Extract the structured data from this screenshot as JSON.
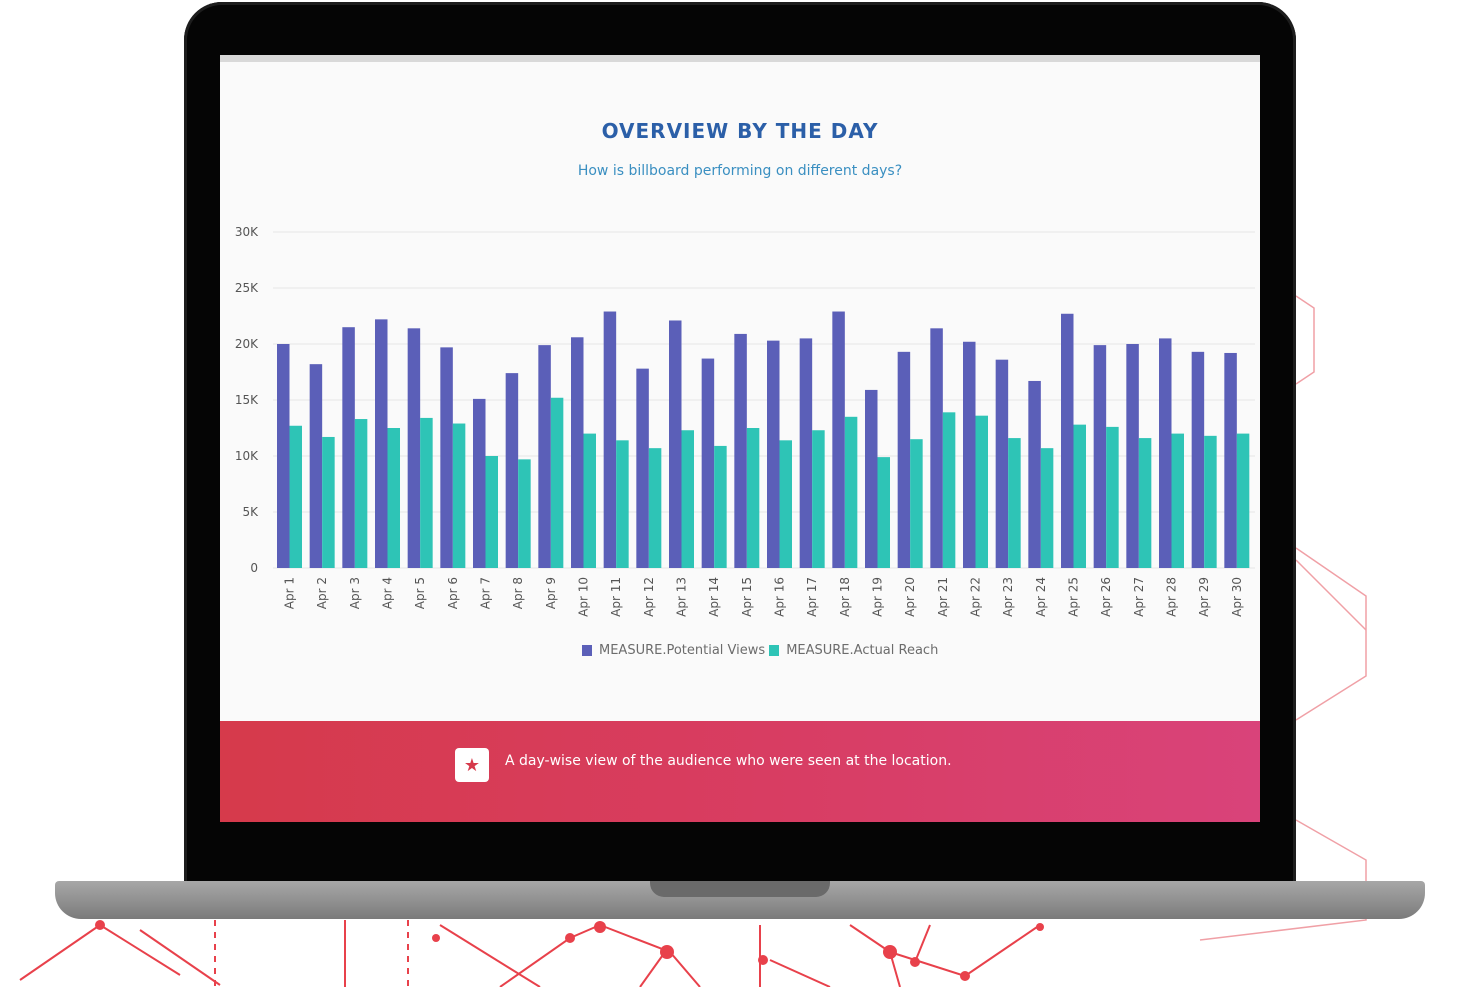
{
  "banner": {
    "icon": "star-icon",
    "text": "A day-wise view of the audience who were seen at the location."
  },
  "colors": {
    "title": "#2b5fa8",
    "subtitle": "#3a8fc1",
    "banner": "#d63a4b",
    "decoration": "#e8414b"
  },
  "chart_data": {
    "type": "bar",
    "title": "OVERVIEW BY THE DAY",
    "subtitle": "How is billboard performing on different days?",
    "categories": [
      "Apr 1",
      "Apr 2",
      "Apr 3",
      "Apr 4",
      "Apr 5",
      "Apr 6",
      "Apr 7",
      "Apr 8",
      "Apr 9",
      "Apr 10",
      "Apr 11",
      "Apr 12",
      "Apr 13",
      "Apr 14",
      "Apr 15",
      "Apr 16",
      "Apr 17",
      "Apr 18",
      "Apr 19",
      "Apr 20",
      "Apr 21",
      "Apr 22",
      "Apr 23",
      "Apr 24",
      "Apr 25",
      "Apr 26",
      "Apr 27",
      "Apr 28",
      "Apr 29",
      "Apr 30"
    ],
    "series": [
      {
        "name": "MEASURE.Potential Views",
        "color": "#5b5fb8",
        "values": [
          20000,
          18200,
          21500,
          22200,
          21400,
          19700,
          15100,
          17400,
          19900,
          20600,
          22900,
          17800,
          22100,
          18700,
          20900,
          20300,
          20500,
          22900,
          15900,
          19300,
          21400,
          20200,
          18600,
          16700,
          22700,
          19900,
          20000,
          20500,
          19300,
          19200
        ]
      },
      {
        "name": "MEASURE.Actual Reach",
        "color": "#2ec4b6",
        "values": [
          12700,
          11700,
          13300,
          12500,
          13400,
          12900,
          10000,
          9700,
          15200,
          12000,
          11400,
          10700,
          12300,
          10900,
          12500,
          11400,
          12300,
          13500,
          9900,
          11500,
          13900,
          13600,
          11600,
          10700,
          12800,
          12600,
          11600,
          12000,
          11800,
          12000
        ]
      }
    ],
    "yticks": [
      "0",
      "5K",
      "10K",
      "15K",
      "20K",
      "25K",
      "30K"
    ],
    "ylim": [
      0,
      30000
    ],
    "grid": true,
    "legend": "bottom"
  }
}
